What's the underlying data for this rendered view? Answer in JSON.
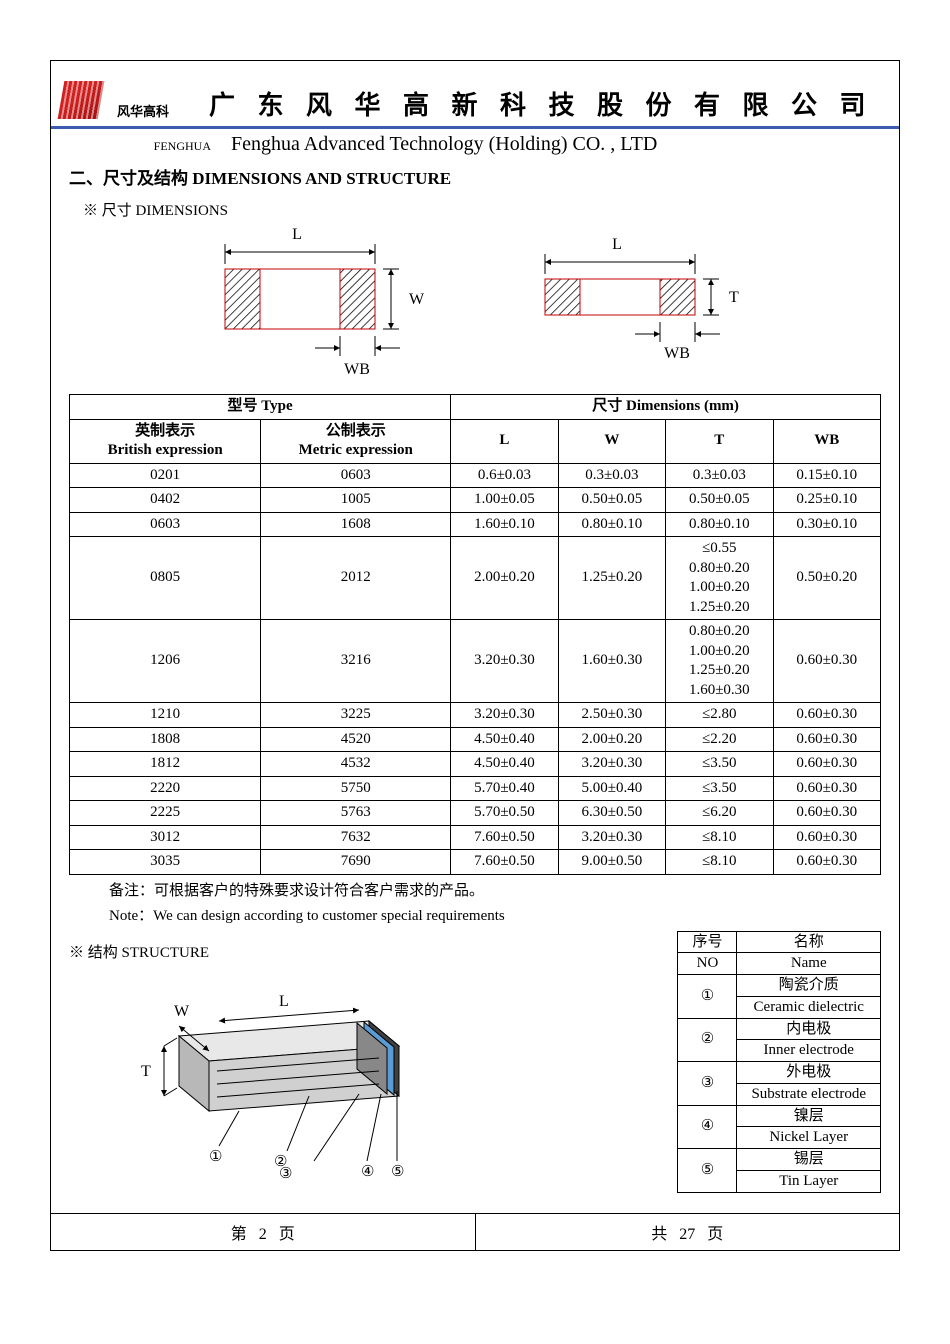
{
  "header": {
    "logo_text": "风华高科",
    "title_cn": "广 东 风 华 高 新 科 技 股 份 有 限 公 司",
    "brand_en": "FENGHUA",
    "title_en": "Fenghua Advanced Technology (Holding) CO. , LTD"
  },
  "section": {
    "title": "二、尺寸及结构   DIMENSIONS AND STRUCTURE",
    "dim_sub": "※ 尺寸 DIMENSIONS",
    "struct_sub": "※ 结构 STRUCTURE"
  },
  "diagram_labels": {
    "L": "L",
    "W": "W",
    "T": "T",
    "WB": "WB"
  },
  "dim_table": {
    "head_type": "型号 Type",
    "head_dim": "尺寸    Dimensions     (mm)",
    "col_british_cn": "英制表示",
    "col_british_en": "British expression",
    "col_metric_cn": "公制表示",
    "col_metric_en": "Metric expression",
    "col_L": "L",
    "col_W": "W",
    "col_T": "T",
    "col_WB": "WB",
    "rows": [
      {
        "b": "0201",
        "m": "0603",
        "L": "0.6±0.03",
        "W": "0.3±0.03",
        "T": "0.3±0.03",
        "WB": "0.15±0.10"
      },
      {
        "b": "0402",
        "m": "1005",
        "L": "1.00±0.05",
        "W": "0.50±0.05",
        "T": "0.50±0.05",
        "WB": "0.25±0.10"
      },
      {
        "b": "0603",
        "m": "1608",
        "L": "1.60±0.10",
        "W": "0.80±0.10",
        "T": "0.80±0.10",
        "WB": "0.30±0.10"
      },
      {
        "b": "0805",
        "m": "2012",
        "L": "2.00±0.20",
        "W": "1.25±0.20",
        "T": "≤0.55\n0.80±0.20\n1.00±0.20\n1.25±0.20",
        "WB": "0.50±0.20"
      },
      {
        "b": "1206",
        "m": "3216",
        "L": "3.20±0.30",
        "W": "1.60±0.30",
        "T": "0.80±0.20\n1.00±0.20\n1.25±0.20\n1.60±0.30",
        "WB": "0.60±0.30"
      },
      {
        "b": "1210",
        "m": "3225",
        "L": "3.20±0.30",
        "W": "2.50±0.30",
        "T": "≤2.80",
        "WB": "0.60±0.30"
      },
      {
        "b": "1808",
        "m": "4520",
        "L": "4.50±0.40",
        "W": "2.00±0.20",
        "T": "≤2.20",
        "WB": "0.60±0.30"
      },
      {
        "b": "1812",
        "m": "4532",
        "L": "4.50±0.40",
        "W": "3.20±0.30",
        "T": "≤3.50",
        "WB": "0.60±0.30"
      },
      {
        "b": "2220",
        "m": "5750",
        "L": "5.70±0.40",
        "W": "5.00±0.40",
        "T": "≤3.50",
        "WB": "0.60±0.30"
      },
      {
        "b": "2225",
        "m": "5763",
        "L": "5.70±0.50",
        "W": "6.30±0.50",
        "T": "≤6.20",
        "WB": "0.60±0.30"
      },
      {
        "b": "3012",
        "m": "7632",
        "L": "7.60±0.50",
        "W": "3.20±0.30",
        "T": "≤8.10",
        "WB": "0.60±0.30"
      },
      {
        "b": "3035",
        "m": "7690",
        "L": "7.60±0.50",
        "W": "9.00±0.50",
        "T": "≤8.10",
        "WB": "0.60±0.30"
      }
    ]
  },
  "notes": {
    "cn": "备注：可根据客户的特殊要求设计符合客户需求的产品。",
    "en": "Note：We can design according to customer special requirements"
  },
  "struct_table": {
    "head_no_cn": "序号",
    "head_no_en": "NO",
    "head_name_cn": "名称",
    "head_name_en": "Name",
    "rows": [
      {
        "no": "①",
        "cn": "陶瓷介质",
        "en": "Ceramic   dielectric"
      },
      {
        "no": "②",
        "cn": "内电极",
        "en": "Inner   electrode"
      },
      {
        "no": "③",
        "cn": "外电极",
        "en": "Substrate   electrode"
      },
      {
        "no": "④",
        "cn": "镍层",
        "en": "Nickel Layer"
      },
      {
        "no": "⑤",
        "cn": "锡层",
        "en": "Tin Layer"
      }
    ]
  },
  "struct_diagram": {
    "W": "W",
    "L": "L",
    "T": "T",
    "n1": "①",
    "n2": "②",
    "n3": "③",
    "n4": "④",
    "n5": "⑤"
  },
  "footer": {
    "left_pre": "第",
    "left_num": "2",
    "left_post": "页",
    "right_pre": "共",
    "right_num": "27",
    "right_post": "页"
  },
  "colors": {
    "accent": "#3b5db0",
    "logo": "#d02020",
    "text": "#000000",
    "hatch": "#000000",
    "outline_red": "#c00000",
    "struct_body": "#d9d9d9",
    "struct_end": "#404040",
    "struct_blue": "#5b9bd5"
  }
}
